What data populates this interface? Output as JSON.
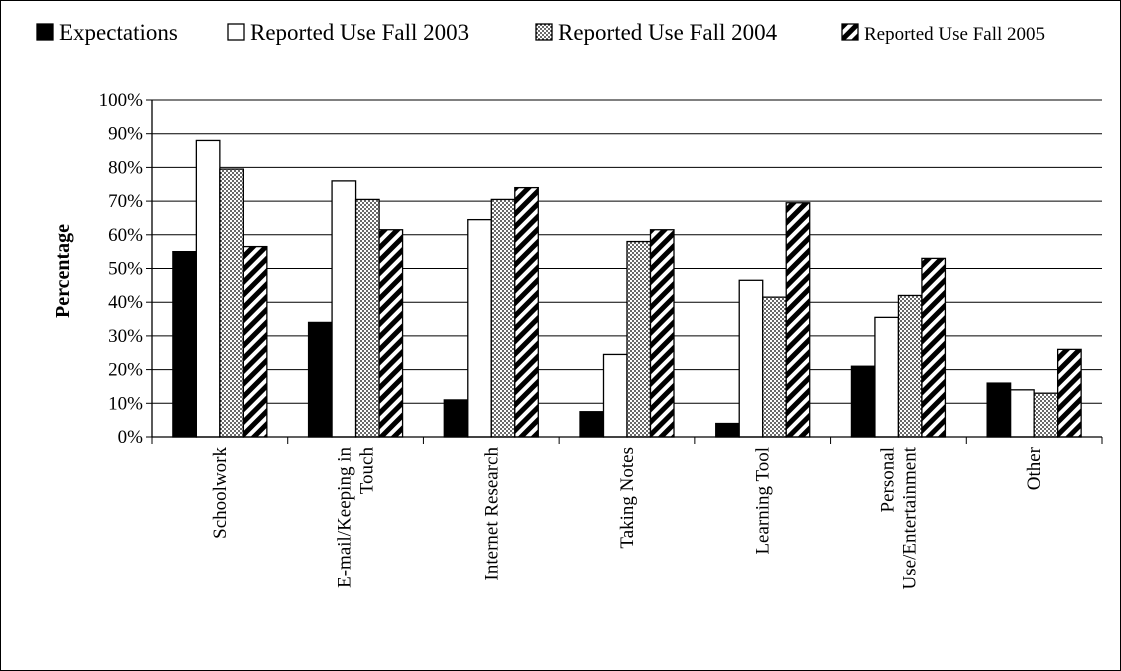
{
  "chart_data": {
    "type": "bar",
    "title": "",
    "xlabel": "",
    "ylabel": "Percentage",
    "ylim": [
      0,
      100
    ],
    "ytick_step": 10,
    "ytick_suffix": "%",
    "grid": true,
    "legend_position": "top",
    "categories": [
      [
        "Schoolwork"
      ],
      [
        "E-mail/Keeping in",
        "Touch"
      ],
      [
        "Internet Research"
      ],
      [
        "Taking Notes"
      ],
      [
        "Learning Tool"
      ],
      [
        "Personal",
        "Use/Entertainment"
      ],
      [
        "Other"
      ]
    ],
    "series": [
      {
        "name": "Expectations",
        "pattern": "solid-black",
        "values": [
          55,
          34,
          11,
          7.5,
          4,
          21,
          16
        ]
      },
      {
        "name": "Reported Use Fall 2003",
        "pattern": "white",
        "values": [
          88,
          76,
          64.5,
          24.5,
          46.5,
          35.5,
          14
        ]
      },
      {
        "name": "Reported Use Fall 2004",
        "pattern": "dotted",
        "values": [
          79.5,
          70.5,
          70.5,
          58,
          41.5,
          42,
          13
        ]
      },
      {
        "name": "Reported Use Fall 2005",
        "pattern": "diagonal-hatch",
        "values": [
          56.5,
          61.5,
          74,
          61.5,
          69.5,
          53,
          26
        ]
      }
    ]
  }
}
